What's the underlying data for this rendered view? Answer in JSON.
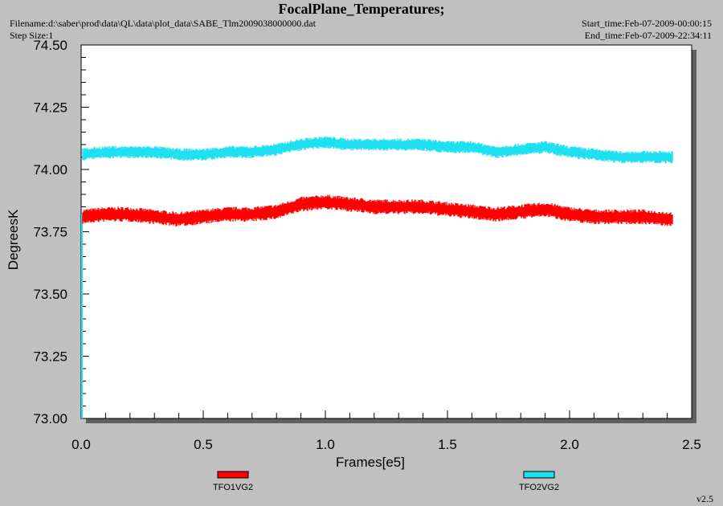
{
  "header": {
    "title": "FocalPlane_Temperatures;",
    "filename": "Filename:d:\\saber\\prod\\data\\QL\\data\\plot_data\\SABE_Tlm2009038000000.dat",
    "step_size": "Step Size:1",
    "start_time": "Start_time:Feb-07-2009-00:00:15",
    "end_time": "End_time:Feb-07-2009-22:34:11"
  },
  "version": "v2.5",
  "chart_data": {
    "type": "line",
    "title": "FocalPlane_Temperatures;",
    "xlabel": "Frames[e5]",
    "ylabel": "DegreesK",
    "xlim": [
      0.0,
      2.5
    ],
    "ylim": [
      73.0,
      74.5
    ],
    "xticks": [
      "0.0",
      "0.5",
      "1.0",
      "1.5",
      "2.0",
      "2.5"
    ],
    "yticks": [
      "73.00",
      "73.25",
      "73.50",
      "73.75",
      "74.00",
      "74.25",
      "74.50"
    ],
    "grid": false,
    "legend_position": "bottom",
    "x": [
      0.0,
      0.1,
      0.2,
      0.3,
      0.4,
      0.5,
      0.6,
      0.7,
      0.8,
      0.9,
      1.0,
      1.1,
      1.2,
      1.3,
      1.4,
      1.5,
      1.6,
      1.7,
      1.8,
      1.9,
      2.0,
      2.1,
      2.2,
      2.3,
      2.42
    ],
    "series": [
      {
        "name": "TFO1VG2",
        "color": "#ff0000",
        "values": [
          73.81,
          73.82,
          73.82,
          73.81,
          73.8,
          73.81,
          73.82,
          73.82,
          73.83,
          73.86,
          73.87,
          73.86,
          73.85,
          73.85,
          73.85,
          73.84,
          73.83,
          73.82,
          73.83,
          73.84,
          73.82,
          73.81,
          73.81,
          73.81,
          73.8
        ],
        "spread": 0.03
      },
      {
        "name": "TFO2VG2",
        "color": "#1fe0f0",
        "values": [
          74.06,
          74.07,
          74.07,
          74.07,
          74.06,
          74.06,
          74.07,
          74.07,
          74.08,
          74.1,
          74.11,
          74.1,
          74.1,
          74.1,
          74.1,
          74.09,
          74.09,
          74.07,
          74.08,
          74.09,
          74.07,
          74.06,
          74.05,
          74.05,
          74.05
        ],
        "spread": 0.025
      }
    ]
  }
}
